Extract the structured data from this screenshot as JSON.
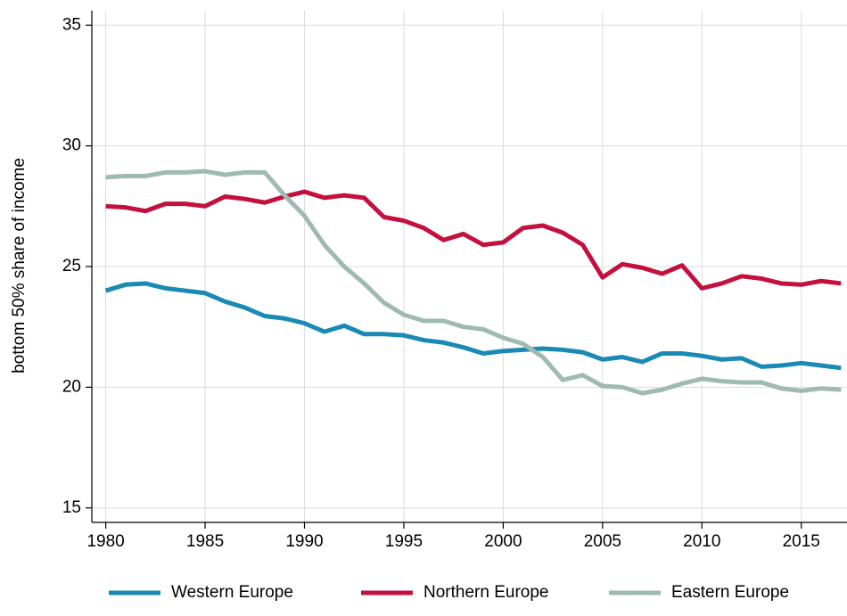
{
  "chart_data": {
    "type": "line",
    "y_label": "bottom 50% share of income",
    "x": [
      1980,
      1981,
      1982,
      1983,
      1984,
      1985,
      1986,
      1987,
      1988,
      1989,
      1990,
      1991,
      1992,
      1993,
      1994,
      1995,
      1996,
      1997,
      1998,
      1999,
      2000,
      2001,
      2002,
      2003,
      2004,
      2005,
      2006,
      2007,
      2008,
      2009,
      2010,
      2011,
      2012,
      2013,
      2014,
      2015,
      2016,
      2017
    ],
    "series": [
      {
        "name": "Western Europe",
        "color": "#1a8ab5",
        "values": [
          24.0,
          24.25,
          24.3,
          24.1,
          24.0,
          23.9,
          23.55,
          23.3,
          22.95,
          22.85,
          22.65,
          22.3,
          22.55,
          22.2,
          22.2,
          22.15,
          21.95,
          21.85,
          21.65,
          21.4,
          21.5,
          21.55,
          21.6,
          21.55,
          21.45,
          21.15,
          21.25,
          21.05,
          21.4,
          21.4,
          21.3,
          21.15,
          21.2,
          20.85,
          20.9,
          21.0,
          20.9,
          20.8
        ]
      },
      {
        "name": "Northern Europe",
        "color": "#c4103f",
        "values": [
          27.5,
          27.45,
          27.3,
          27.6,
          27.6,
          27.5,
          27.9,
          27.8,
          27.65,
          27.9,
          28.1,
          27.85,
          27.95,
          27.85,
          27.05,
          26.9,
          26.6,
          26.1,
          26.35,
          25.9,
          26.0,
          26.6,
          26.7,
          26.4,
          25.9,
          24.55,
          25.1,
          24.95,
          24.7,
          25.05,
          24.1,
          24.3,
          24.6,
          24.5,
          24.3,
          24.25,
          24.4,
          24.3
        ]
      },
      {
        "name": "Eastern Europe",
        "color": "#9fbab3",
        "values": [
          28.7,
          28.75,
          28.75,
          28.9,
          28.9,
          28.95,
          28.8,
          28.9,
          28.9,
          27.95,
          27.1,
          25.9,
          25.0,
          24.3,
          23.5,
          23.0,
          22.75,
          22.75,
          22.5,
          22.4,
          22.05,
          21.8,
          21.25,
          20.3,
          20.5,
          20.05,
          20.0,
          19.75,
          19.9,
          20.15,
          20.35,
          20.25,
          20.2,
          20.2,
          19.95,
          19.85,
          19.95,
          19.9
        ]
      }
    ],
    "xlim": [
      1979.3,
      2017.3
    ],
    "xticks": [
      1980,
      1985,
      1990,
      1995,
      2000,
      2005,
      2010,
      2015
    ],
    "ylim": [
      14.4,
      35.6
    ],
    "yticks": [
      15,
      20,
      25,
      30,
      35
    ],
    "grid": true,
    "legend": "bottom"
  }
}
